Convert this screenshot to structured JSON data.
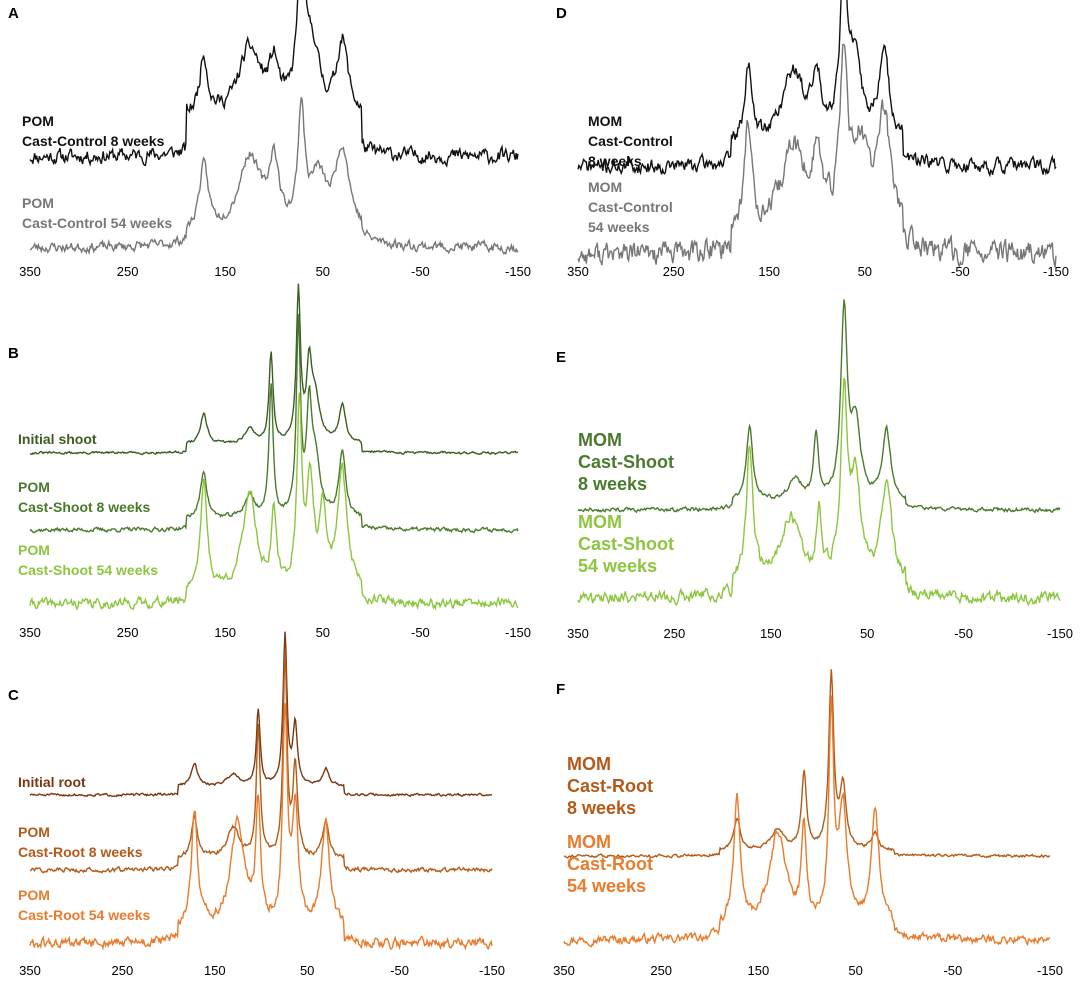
{
  "chart_data": [
    {
      "panel": "A",
      "type": "line",
      "xlim": [
        350,
        -150
      ],
      "ticks": [
        "350",
        "250",
        "150",
        "50",
        "-50",
        "-150"
      ],
      "xlabel": "",
      "ylabel": "",
      "series": [
        {
          "name": "POM Cast-Control 8 weeks",
          "lines": [
            "POM",
            "Cast-Control 8 weeks"
          ],
          "color": "#111111",
          "baseline": 0.18,
          "noise": 0.035,
          "seed": 11,
          "peaks": [
            [
              172,
              0.4,
              5
            ],
            [
              125,
              0.45,
              14
            ],
            [
              100,
              0.3,
              6
            ],
            [
              72,
              1.0,
              5
            ],
            [
              60,
              0.4,
              8
            ],
            [
              30,
              0.5,
              7
            ]
          ]
        },
        {
          "name": "POM Cast-Control 54 weeks",
          "lines": [
            "POM",
            "Cast-Control 54 weeks"
          ],
          "color": "#777777",
          "baseline": 0.06,
          "noise": 0.03,
          "seed": 23,
          "peaks": [
            [
              172,
              0.55,
              6
            ],
            [
              125,
              0.65,
              14
            ],
            [
              100,
              0.55,
              6
            ],
            [
              72,
              0.98,
              4
            ],
            [
              55,
              0.45,
              10
            ],
            [
              30,
              0.7,
              9
            ]
          ]
        }
      ]
    },
    {
      "panel": "B",
      "type": "line",
      "xlim": [
        350,
        -150
      ],
      "ticks": [
        "350",
        "250",
        "150",
        "50",
        "-50",
        "-150"
      ],
      "xlabel": "",
      "ylabel": "",
      "series": [
        {
          "name": "Initial shoot",
          "lines": [
            "Initial shoot"
          ],
          "color": "#3b5e23",
          "baseline": 0.04,
          "noise": 0.006,
          "seed": 31,
          "peaks": [
            [
              172,
              0.2,
              4
            ],
            [
              125,
              0.1,
              6
            ],
            [
              103,
              0.6,
              2.5
            ],
            [
              75,
              1.0,
              2.5
            ],
            [
              64,
              0.45,
              3
            ],
            [
              58,
              0.3,
              6
            ],
            [
              30,
              0.25,
              4
            ]
          ]
        },
        {
          "name": "POM Cast-Shoot 8 weeks",
          "lines": [
            "POM",
            "Cast-Shoot 8 weeks"
          ],
          "color": "#4a7a2c",
          "baseline": 0.04,
          "noise": 0.008,
          "seed": 37,
          "peaks": [
            [
              172,
              0.25,
              4
            ],
            [
              125,
              0.12,
              6
            ],
            [
              103,
              0.7,
              2.5
            ],
            [
              75,
              1.0,
              2.5
            ],
            [
              64,
              0.5,
              3
            ],
            [
              58,
              0.3,
              6
            ],
            [
              30,
              0.35,
              4
            ]
          ]
        },
        {
          "name": "POM Cast-Shoot 54 weeks",
          "lines": [
            "POM",
            "Cast-Shoot 54 weeks"
          ],
          "color": "#8cc63f",
          "baseline": 0.05,
          "noise": 0.02,
          "seed": 41,
          "peaks": [
            [
              172,
              0.6,
              4
            ],
            [
              125,
              0.55,
              8
            ],
            [
              100,
              0.4,
              3
            ],
            [
              74,
              1.0,
              3
            ],
            [
              63,
              0.6,
              4
            ],
            [
              50,
              0.4,
              4
            ],
            [
              30,
              0.65,
              6
            ]
          ]
        }
      ]
    },
    {
      "panel": "C",
      "type": "line",
      "xlim": [
        350,
        -150
      ],
      "ticks": [
        "350",
        "250",
        "150",
        "50",
        "-50",
        "-150"
      ],
      "xlabel": "",
      "ylabel": "",
      "series": [
        {
          "name": "Initial root",
          "lines": [
            "Initial root"
          ],
          "color": "#7a3812",
          "baseline": 0.04,
          "noise": 0.006,
          "seed": 51,
          "peaks": [
            [
              172,
              0.15,
              4
            ],
            [
              130,
              0.08,
              8
            ],
            [
              103,
              0.5,
              2.5
            ],
            [
              74,
              1.0,
              2.5
            ],
            [
              63,
              0.4,
              3
            ],
            [
              30,
              0.12,
              4
            ]
          ]
        },
        {
          "name": "POM Cast-Root 8 weeks",
          "lines": [
            "POM",
            "Cast-Root 8 weeks"
          ],
          "color": "#b45a18",
          "baseline": 0.04,
          "noise": 0.008,
          "seed": 57,
          "peaks": [
            [
              172,
              0.2,
              4
            ],
            [
              130,
              0.15,
              8
            ],
            [
              103,
              0.65,
              2.5
            ],
            [
              74,
              1.0,
              2.5
            ],
            [
              63,
              0.45,
              3
            ],
            [
              30,
              0.18,
              4
            ]
          ]
        },
        {
          "name": "POM Cast-Root 54 weeks",
          "lines": [
            "POM",
            "Cast-Root 54 weeks"
          ],
          "color": "#e87b2c",
          "baseline": 0.05,
          "noise": 0.018,
          "seed": 61,
          "peaks": [
            [
              172,
              0.55,
              4
            ],
            [
              125,
              0.5,
              9
            ],
            [
              103,
              0.55,
              3
            ],
            [
              74,
              1.0,
              3
            ],
            [
              63,
              0.55,
              4
            ],
            [
              30,
              0.5,
              5
            ]
          ]
        }
      ]
    },
    {
      "panel": "D",
      "type": "line",
      "xlim": [
        350,
        -150
      ],
      "ticks": [
        "350",
        "250",
        "150",
        "50",
        "-50",
        "-150"
      ],
      "xlabel": "",
      "ylabel": "",
      "series": [
        {
          "name": "MOM Cast-Control 8 weeks",
          "lines": [
            "MOM",
            "Cast-Control",
            "8 weeks"
          ],
          "color": "#111111",
          "baseline": 0.1,
          "noise": 0.035,
          "seed": 71,
          "peaks": [
            [
              172,
              0.5,
              4
            ],
            [
              125,
              0.45,
              14
            ],
            [
              100,
              0.35,
              6
            ],
            [
              72,
              1.0,
              5
            ],
            [
              60,
              0.45,
              8
            ],
            [
              30,
              0.55,
              7
            ]
          ]
        },
        {
          "name": "MOM Cast-Control 54 weeks",
          "lines": [
            "MOM",
            "Cast-Control",
            "54 weeks"
          ],
          "color": "#777777",
          "baseline": 0.08,
          "noise": 0.05,
          "seed": 77,
          "peaks": [
            [
              172,
              0.6,
              5
            ],
            [
              125,
              0.5,
              14
            ],
            [
              100,
              0.4,
              6
            ],
            [
              72,
              0.95,
              5
            ],
            [
              55,
              0.45,
              10
            ],
            [
              30,
              0.65,
              9
            ]
          ]
        }
      ]
    },
    {
      "panel": "E",
      "type": "line",
      "xlim": [
        350,
        -150
      ],
      "ticks": [
        "350",
        "250",
        "150",
        "50",
        "-50",
        "-150"
      ],
      "xlabel": "",
      "ylabel": "",
      "series": [
        {
          "name": "MOM Cast-Shoot 8 weeks",
          "lines": [
            "MOM",
            "Cast-Shoot",
            "8 weeks"
          ],
          "color": "#4a7a2c",
          "baseline": 0.03,
          "noise": 0.008,
          "seed": 81,
          "peaks": [
            [
              172,
              0.4,
              4
            ],
            [
              125,
              0.12,
              8
            ],
            [
              103,
              0.35,
              3
            ],
            [
              74,
              1.0,
              4
            ],
            [
              62,
              0.4,
              6
            ],
            [
              30,
              0.38,
              5
            ]
          ]
        },
        {
          "name": "MOM Cast-Shoot 54 weeks",
          "lines": [
            "MOM",
            "Cast-Shoot",
            "54 weeks"
          ],
          "color": "#8cc63f",
          "baseline": 0.06,
          "noise": 0.025,
          "seed": 87,
          "peaks": [
            [
              172,
              0.75,
              4
            ],
            [
              130,
              0.35,
              12
            ],
            [
              100,
              0.35,
              3
            ],
            [
              74,
              1.0,
              4
            ],
            [
              62,
              0.55,
              6
            ],
            [
              30,
              0.55,
              6
            ]
          ]
        }
      ]
    },
    {
      "panel": "F",
      "type": "line",
      "xlim": [
        350,
        -150
      ],
      "ticks": [
        "350",
        "250",
        "150",
        "50",
        "-50",
        "-150"
      ],
      "xlabel": "",
      "ylabel": "",
      "series": [
        {
          "name": "MOM Cast-Root 8 weeks",
          "lines": [
            "MOM",
            "Cast-Root",
            "8 weeks"
          ],
          "color": "#b45a18",
          "baseline": 0.02,
          "noise": 0.006,
          "seed": 91,
          "peaks": [
            [
              172,
              0.18,
              4
            ],
            [
              130,
              0.12,
              8
            ],
            [
              103,
              0.45,
              3
            ],
            [
              75,
              1.0,
              3
            ],
            [
              63,
              0.35,
              4
            ],
            [
              30,
              0.1,
              4
            ]
          ]
        },
        {
          "name": "MOM Cast-Root 54 weeks",
          "lines": [
            "MOM",
            "Cast-Root",
            "54 weeks"
          ],
          "color": "#e87b2c",
          "baseline": 0.04,
          "noise": 0.015,
          "seed": 97,
          "peaks": [
            [
              172,
              0.6,
              4
            ],
            [
              130,
              0.45,
              10
            ],
            [
              103,
              0.45,
              3
            ],
            [
              75,
              1.0,
              3
            ],
            [
              63,
              0.55,
              5
            ],
            [
              30,
              0.55,
              5
            ]
          ]
        }
      ]
    }
  ]
}
